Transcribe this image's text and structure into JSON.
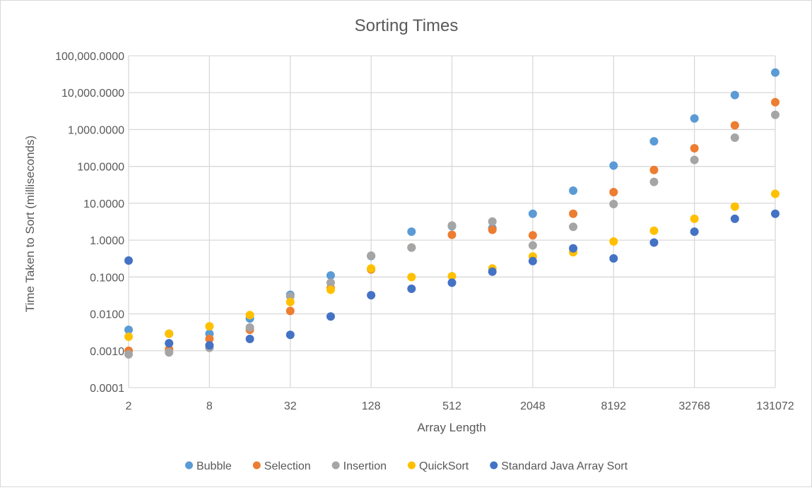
{
  "chart_data": {
    "type": "scatter",
    "title": "Sorting Times",
    "xlabel": "Array Length",
    "ylabel": "Time Taken to Sort (milliseconds)",
    "x_scale": "log2",
    "y_scale": "log10",
    "xlim": [
      2,
      131072
    ],
    "ylim": [
      0.0001,
      100000
    ],
    "x_tick_labels": [
      "2",
      "8",
      "32",
      "128",
      "512",
      "2048",
      "8192",
      "32768",
      "131072"
    ],
    "y_tick_labels": [
      "100,000.0000",
      "10,000.0000",
      "1,000.0000",
      "100.0000",
      "10.0000",
      "1.0000",
      "0.1000",
      "0.0100",
      "0.0010",
      "0.0001"
    ],
    "grid": true,
    "legend_position": "bottom",
    "x": [
      2,
      4,
      8,
      16,
      32,
      64,
      128,
      256,
      512,
      1024,
      2048,
      4096,
      8192,
      16384,
      32768,
      65536,
      131072
    ],
    "series": [
      {
        "name": "Bubble",
        "color": "#5B9BD5",
        "values": [
          0.0037,
          0.0029,
          0.0029,
          0.0075,
          0.033,
          0.11,
          0.37,
          1.7,
          2.4,
          2.1,
          5.2,
          22,
          105,
          480,
          2000,
          8600,
          35000
        ]
      },
      {
        "name": "Selection",
        "color": "#ED7D31",
        "values": [
          0.001,
          0.0011,
          0.0021,
          0.0037,
          0.012,
          0.05,
          0.16,
          0.63,
          1.4,
          1.9,
          1.35,
          5.2,
          20,
          80,
          310,
          1300,
          5500
        ]
      },
      {
        "name": "Insertion",
        "color": "#A5A5A5",
        "values": [
          0.0008,
          0.0009,
          0.0012,
          0.0043,
          0.03,
          0.07,
          0.38,
          0.63,
          2.5,
          3.2,
          0.72,
          2.3,
          9.5,
          38,
          150,
          600,
          2500
        ]
      },
      {
        "name": "QuickSort",
        "color": "#FFC000",
        "values": [
          0.0024,
          0.0029,
          0.0046,
          0.0093,
          0.021,
          0.045,
          0.17,
          0.1,
          0.105,
          0.17,
          0.36,
          0.47,
          0.92,
          1.8,
          3.8,
          8.1,
          18
        ]
      },
      {
        "name": "Standard Java Array Sort",
        "color": "#4472C4",
        "values": [
          0.28,
          0.0016,
          0.0014,
          0.0021,
          0.0027,
          0.0085,
          0.032,
          0.048,
          0.07,
          0.14,
          0.27,
          0.6,
          0.32,
          0.86,
          1.7,
          3.8,
          5.2
        ]
      }
    ]
  }
}
